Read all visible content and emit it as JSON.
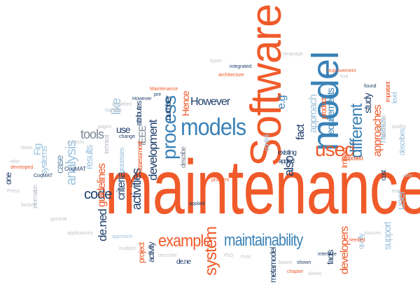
{
  "words": {
    "maintenance": "maintenance",
    "software": "Software",
    "model": "model",
    "models": "models",
    "process": "process",
    "used": "used",
    "example": "example",
    "maintainability": "maintainability",
    "system": "system",
    "development": "development",
    "activities": "activities",
    "different": "different",
    "approaches": "approaches",
    "approach": "approach",
    "requirements": "requirements",
    "tools": "tools",
    "analysis": "analysis",
    "code": "code",
    "guidelines": "guidelines",
    "criteria": "criteria",
    "however": "However",
    "hence": "Hence",
    "ieee": "IEEE",
    "like": "like",
    "also": "also",
    "fact": "fact",
    "use": "use",
    "case": "case",
    "results": "results",
    "systems": "systems",
    "defined": "de.ned",
    "developers": "developers",
    "support": "support",
    "user": "user",
    "study": "study",
    "impact": "impact",
    "metrics": "metrics",
    "eg": "e.g",
    "activity": "activity",
    "project": "project",
    "metamodel": "metamodel",
    "facts": "facts",
    "number": "number",
    "attributes": "attributes",
    "product": "product",
    "one": "one",
    "fig": "Fig",
    "defne": "de.ne",
    "cost": "cost",
    "describe": "describe",
    "existing": "existing",
    "control": "control",
    "processes": "processes",
    "assessment": "assessment",
    "level": "level",
    "important": "important",
    "proposed": "proposed",
    "applied": "applied",
    "quality": "quality",
    "describes": "describes",
    "technical": "technical",
    "information": "information",
    "framework": "framework"
  }
}
